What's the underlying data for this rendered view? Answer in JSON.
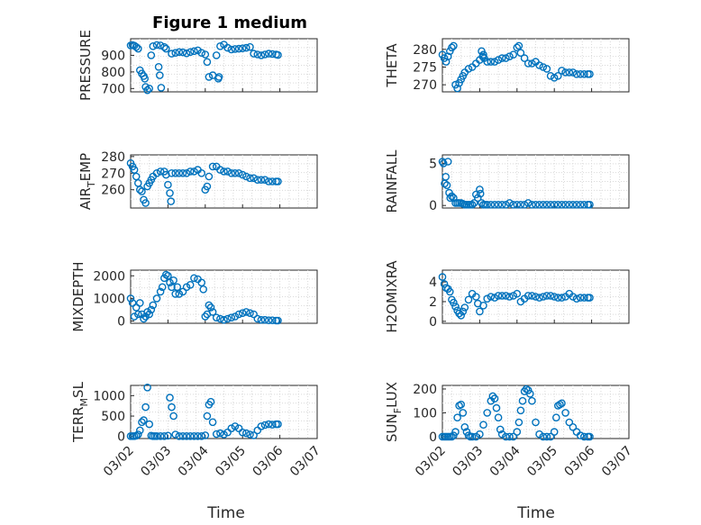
{
  "figure": {
    "title": "Figure 1 medium",
    "xlabel": "Time"
  },
  "chart_data": [
    {
      "type": "scatter",
      "ylabel": "PRESSURE",
      "title": "Figure 1 medium",
      "ylim": [
        680,
        1000
      ],
      "yticks": [
        700,
        800,
        900
      ],
      "yticklabels": [
        "700",
        "800",
        "900"
      ],
      "xlim": [
        0,
        5
      ],
      "xticks": [
        0,
        1,
        2,
        3,
        4,
        5
      ],
      "xticklabels": [
        "03/02",
        "03/03",
        "03/04",
        "03/05",
        "03/06",
        "03/07"
      ],
      "marker_color": "#0072bd",
      "x": [
        0,
        0.05,
        0.1,
        0.15,
        0.2,
        0.25,
        0.3,
        0.35,
        0.38,
        0.4,
        0.45,
        0.5,
        0.55,
        0.6,
        0.7,
        0.8,
        0.9,
        0.95,
        1.1,
        1.2,
        1.3,
        1.4,
        1.5,
        1.6,
        1.7,
        1.8,
        1.9,
        2.0,
        2.05,
        2.1,
        2.2,
        2.3,
        2.4,
        2.5,
        2.6,
        2.7,
        2.8,
        2.9,
        3.0,
        3.1,
        3.2,
        3.3,
        3.4,
        3.5,
        3.6,
        3.7,
        3.8,
        3.9,
        3.95,
        0.75,
        0.78,
        0.82,
        2.35,
        2.37
      ],
      "y": [
        960,
        962,
        958,
        950,
        940,
        810,
        790,
        775,
        760,
        710,
        690,
        700,
        900,
        955,
        962,
        960,
        950,
        940,
        910,
        915,
        920,
        918,
        912,
        920,
        925,
        930,
        915,
        905,
        860,
        770,
        780,
        900,
        955,
        965,
        945,
        935,
        938,
        940,
        942,
        945,
        950,
        910,
        905,
        900,
        905,
        910,
        908,
        905,
        902,
        830,
        780,
        705,
        760,
        770
      ]
    },
    {
      "type": "scatter",
      "ylabel": "THETA",
      "ylim": [
        268,
        283
      ],
      "yticks": [
        270,
        275,
        280
      ],
      "yticklabels": [
        "270",
        "275",
        "280"
      ],
      "xlim": [
        0,
        5
      ],
      "xticks": [
        0,
        1,
        2,
        3,
        4,
        5
      ],
      "xticklabels": [
        "03/02",
        "03/03",
        "03/04",
        "03/05",
        "03/06",
        "03/07"
      ],
      "marker_color": "#0072bd",
      "x": [
        0,
        0.05,
        0.1,
        0.15,
        0.2,
        0.25,
        0.3,
        0.35,
        0.4,
        0.45,
        0.5,
        0.55,
        0.6,
        0.7,
        0.8,
        0.9,
        1.0,
        1.05,
        1.1,
        1.2,
        1.3,
        1.4,
        1.5,
        1.6,
        1.7,
        1.8,
        1.9,
        2.0,
        2.05,
        2.1,
        2.2,
        2.3,
        2.4,
        2.5,
        2.6,
        2.7,
        2.8,
        2.9,
        3.0,
        3.1,
        3.2,
        3.3,
        3.4,
        3.5,
        3.6,
        3.7,
        3.8,
        3.9,
        3.95,
        1.08,
        1.12
      ],
      "y": [
        278.5,
        277.5,
        276.5,
        278,
        279.5,
        280.5,
        281,
        270,
        269,
        270.5,
        271.5,
        272.5,
        273.5,
        274.5,
        275,
        276,
        277,
        279.5,
        278.5,
        276.5,
        276.5,
        276.5,
        277,
        277.5,
        277.5,
        278,
        278.5,
        280.5,
        281,
        279,
        277.5,
        276,
        276,
        276.5,
        275.5,
        275,
        274.5,
        272.5,
        272,
        272.5,
        274,
        273.5,
        273.5,
        273.5,
        273,
        273,
        273,
        273,
        273,
        278,
        277.5
      ]
    },
    {
      "type": "scatter",
      "ylabel": "AIR_TEMP",
      "ylim": [
        249,
        281
      ],
      "yticks": [
        260,
        270,
        280
      ],
      "yticklabels": [
        "260",
        "270",
        "280"
      ],
      "xlim": [
        0,
        5
      ],
      "xticks": [
        0,
        1,
        2,
        3,
        4,
        5
      ],
      "xticklabels": [
        "03/02",
        "03/03",
        "03/04",
        "03/05",
        "03/06",
        "03/07"
      ],
      "marker_color": "#0072bd",
      "x": [
        0,
        0.05,
        0.1,
        0.15,
        0.2,
        0.25,
        0.3,
        0.35,
        0.4,
        0.45,
        0.5,
        0.55,
        0.6,
        0.7,
        0.8,
        0.9,
        0.95,
        1.0,
        1.1,
        1.2,
        1.3,
        1.4,
        1.5,
        1.6,
        1.7,
        1.8,
        1.9,
        2.0,
        2.05,
        2.1,
        2.2,
        2.3,
        2.4,
        2.5,
        2.6,
        2.7,
        2.8,
        2.9,
        3.0,
        3.1,
        3.2,
        3.3,
        3.4,
        3.5,
        3.6,
        3.7,
        3.8,
        3.9,
        3.95,
        1.05,
        1.08
      ],
      "y": [
        276,
        274,
        272,
        268,
        264,
        260,
        259,
        254,
        252,
        262,
        264,
        266,
        268,
        270,
        271,
        271,
        269,
        263,
        270,
        270,
        270,
        270,
        270,
        271,
        271,
        272,
        270,
        260,
        262,
        268,
        274,
        274,
        272,
        271,
        271,
        270,
        270,
        270,
        269,
        268,
        267,
        267,
        266,
        266,
        266,
        265,
        265,
        265,
        265,
        258,
        253
      ]
    },
    {
      "type": "scatter",
      "ylabel": "RAINFALL",
      "ylim": [
        -0.3,
        6
      ],
      "yticks": [
        0,
        5
      ],
      "yticklabels": [
        "0",
        "5"
      ],
      "xlim": [
        0,
        5
      ],
      "xticks": [
        0,
        1,
        2,
        3,
        4,
        5
      ],
      "xticklabels": [
        "03/02",
        "03/03",
        "03/04",
        "03/05",
        "03/06",
        "03/07"
      ],
      "marker_color": "#0072bd",
      "x": [
        0,
        0.03,
        0.06,
        0.09,
        0.12,
        0.15,
        0.18,
        0.21,
        0.25,
        0.3,
        0.35,
        0.4,
        0.45,
        0.5,
        0.55,
        0.6,
        0.65,
        0.7,
        0.75,
        0.8,
        0.85,
        0.9,
        0.95,
        1.0,
        1.02,
        1.05,
        1.1,
        1.15,
        1.2,
        1.3,
        1.4,
        1.5,
        1.6,
        1.7,
        1.8,
        1.9,
        2.0,
        2.1,
        2.2,
        2.3,
        2.4,
        2.5,
        2.6,
        2.7,
        2.8,
        2.9,
        3.0,
        3.1,
        3.2,
        3.3,
        3.4,
        3.5,
        3.6,
        3.7,
        3.8,
        3.9,
        3.95
      ],
      "y": [
        5.2,
        5.0,
        2.6,
        3.4,
        2.4,
        5.2,
        1.5,
        0.9,
        1.1,
        0.9,
        0.3,
        0.3,
        0.3,
        0.3,
        0.2,
        0.1,
        0.1,
        0.1,
        0.1,
        0.1,
        0.3,
        1.3,
        0.9,
        1.9,
        1.4,
        0.3,
        0.1,
        0.1,
        0.1,
        0.1,
        0.1,
        0.1,
        0.1,
        0.1,
        0.3,
        0.1,
        0.1,
        0.1,
        0.1,
        0.3,
        0.1,
        0.1,
        0.1,
        0.1,
        0.1,
        0.1,
        0.1,
        0.1,
        0.1,
        0.1,
        0.1,
        0.1,
        0.1,
        0.1,
        0.1,
        0.1,
        0.1
      ]
    },
    {
      "type": "scatter",
      "ylabel": "MIXDEPTH",
      "ylim": [
        -100,
        2250
      ],
      "yticks": [
        0,
        1000,
        2000
      ],
      "yticklabels": [
        "0",
        "1000",
        "2000"
      ],
      "xlim": [
        0,
        5
      ],
      "xticks": [
        0,
        1,
        2,
        3,
        4,
        5
      ],
      "xticklabels": [
        "03/02",
        "03/03",
        "03/04",
        "03/05",
        "03/06",
        "03/07"
      ],
      "marker_color": "#0072bd",
      "x": [
        0,
        0.05,
        0.1,
        0.15,
        0.2,
        0.25,
        0.3,
        0.35,
        0.4,
        0.45,
        0.5,
        0.55,
        0.6,
        0.7,
        0.8,
        0.85,
        0.9,
        0.95,
        1.0,
        1.05,
        1.1,
        1.2,
        1.3,
        1.4,
        1.5,
        1.6,
        1.7,
        1.8,
        1.9,
        1.95,
        2.0,
        2.05,
        2.1,
        2.15,
        2.2,
        2.3,
        2.4,
        2.5,
        2.6,
        2.7,
        2.8,
        2.9,
        3.0,
        3.1,
        3.2,
        3.3,
        3.4,
        3.5,
        3.6,
        3.7,
        3.8,
        3.9,
        3.95,
        1.15,
        1.25
      ],
      "y": [
        1000,
        800,
        200,
        600,
        300,
        800,
        300,
        100,
        200,
        400,
        300,
        500,
        700,
        1000,
        1300,
        1500,
        1900,
        2050,
        2000,
        1700,
        1500,
        1200,
        1200,
        1300,
        1500,
        1600,
        1900,
        1850,
        1700,
        1400,
        200,
        300,
        700,
        600,
        400,
        150,
        100,
        50,
        100,
        150,
        200,
        300,
        350,
        400,
        350,
        300,
        100,
        50,
        50,
        30,
        30,
        20,
        20,
        1800,
        1500
      ]
    },
    {
      "type": "scatter",
      "ylabel": "H2OMIXRA",
      "ylim": [
        -0.2,
        5.2
      ],
      "yticks": [
        0,
        2,
        4
      ],
      "yticklabels": [
        "0",
        "2",
        "4"
      ],
      "xlim": [
        0,
        5
      ],
      "xticks": [
        0,
        1,
        2,
        3,
        4,
        5
      ],
      "xticklabels": [
        "03/02",
        "03/03",
        "03/04",
        "03/05",
        "03/06",
        "03/07"
      ],
      "marker_color": "#0072bd",
      "x": [
        0,
        0.05,
        0.1,
        0.15,
        0.2,
        0.25,
        0.3,
        0.35,
        0.4,
        0.45,
        0.5,
        0.55,
        0.6,
        0.7,
        0.8,
        0.9,
        0.95,
        1.0,
        1.1,
        1.2,
        1.3,
        1.4,
        1.5,
        1.6,
        1.7,
        1.8,
        1.9,
        2.0,
        2.1,
        2.2,
        2.3,
        2.4,
        2.5,
        2.6,
        2.7,
        2.8,
        2.9,
        3.0,
        3.1,
        3.2,
        3.3,
        3.4,
        3.5,
        3.6,
        3.7,
        3.8,
        3.9,
        3.95
      ],
      "y": [
        4.5,
        3.8,
        3.4,
        3.3,
        3.0,
        2.2,
        1.9,
        1.5,
        1.1,
        0.8,
        0.6,
        1.0,
        1.4,
        2.2,
        2.8,
        2.5,
        1.8,
        1.0,
        1.6,
        2.3,
        2.5,
        2.4,
        2.6,
        2.6,
        2.6,
        2.5,
        2.6,
        2.8,
        2.0,
        2.3,
        2.6,
        2.6,
        2.5,
        2.4,
        2.5,
        2.6,
        2.6,
        2.5,
        2.4,
        2.4,
        2.5,
        2.8,
        2.5,
        2.3,
        2.4,
        2.4,
        2.4,
        2.4
      ]
    },
    {
      "type": "scatter",
      "ylabel": "TERR_MSL",
      "ylim": [
        -50,
        1250
      ],
      "yticks": [
        0,
        500,
        1000
      ],
      "yticklabels": [
        "0",
        "500",
        "1000"
      ],
      "xlim": [
        0,
        5
      ],
      "xticks": [
        0,
        1,
        2,
        3,
        4,
        5
      ],
      "xticklabels": [
        "03/02",
        "03/03",
        "03/04",
        "03/05",
        "03/06",
        "03/07"
      ],
      "marker_color": "#0072bd",
      "x": [
        0,
        0.05,
        0.1,
        0.15,
        0.2,
        0.25,
        0.3,
        0.35,
        0.4,
        0.45,
        0.5,
        0.55,
        0.6,
        0.65,
        0.7,
        0.8,
        0.9,
        1.0,
        1.05,
        1.1,
        1.15,
        1.2,
        1.3,
        1.4,
        1.5,
        1.6,
        1.7,
        1.8,
        1.9,
        2.0,
        2.05,
        2.1,
        2.15,
        2.2,
        2.3,
        2.4,
        2.5,
        2.6,
        2.7,
        2.8,
        2.9,
        3.0,
        3.1,
        3.2,
        3.3,
        3.4,
        3.5,
        3.6,
        3.7,
        3.8,
        3.9,
        3.95
      ],
      "y": [
        10,
        10,
        10,
        20,
        50,
        150,
        350,
        400,
        720,
        1200,
        300,
        20,
        10,
        10,
        10,
        10,
        10,
        20,
        950,
        720,
        500,
        50,
        10,
        10,
        10,
        10,
        10,
        10,
        10,
        30,
        500,
        780,
        850,
        350,
        60,
        80,
        50,
        100,
        200,
        250,
        200,
        100,
        80,
        50,
        30,
        150,
        250,
        280,
        300,
        290,
        300,
        300
      ]
    },
    {
      "type": "scatter",
      "ylabel": "SUN_FLUX",
      "ylim": [
        -8,
        215
      ],
      "yticks": [
        0,
        100,
        200
      ],
      "yticklabels": [
        "0",
        "100",
        "200"
      ],
      "xlim": [
        0,
        5
      ],
      "xticks": [
        0,
        1,
        2,
        3,
        4,
        5
      ],
      "xticklabels": [
        "03/02",
        "03/03",
        "03/04",
        "03/05",
        "03/06",
        "03/07"
      ],
      "marker_color": "#0072bd",
      "x": [
        0,
        0.05,
        0.1,
        0.15,
        0.2,
        0.25,
        0.3,
        0.35,
        0.4,
        0.45,
        0.5,
        0.55,
        0.6,
        0.65,
        0.7,
        0.75,
        0.8,
        0.9,
        1.0,
        1.1,
        1.2,
        1.3,
        1.35,
        1.4,
        1.45,
        1.5,
        1.55,
        1.6,
        1.7,
        1.8,
        1.9,
        2.0,
        2.05,
        2.1,
        2.15,
        2.2,
        2.25,
        2.3,
        2.35,
        2.4,
        2.5,
        2.6,
        2.7,
        2.8,
        2.9,
        3.0,
        3.05,
        3.1,
        3.15,
        3.2,
        3.3,
        3.4,
        3.5,
        3.6,
        3.7,
        3.8,
        3.9,
        3.95
      ],
      "y": [
        0,
        0,
        0,
        0,
        0,
        0,
        5,
        20,
        80,
        130,
        135,
        100,
        40,
        20,
        5,
        0,
        0,
        0,
        10,
        50,
        100,
        150,
        170,
        160,
        120,
        80,
        30,
        10,
        0,
        0,
        0,
        20,
        60,
        110,
        150,
        190,
        200,
        195,
        180,
        150,
        60,
        10,
        0,
        0,
        0,
        20,
        80,
        130,
        135,
        140,
        100,
        60,
        40,
        20,
        5,
        0,
        0,
        0
      ]
    }
  ]
}
